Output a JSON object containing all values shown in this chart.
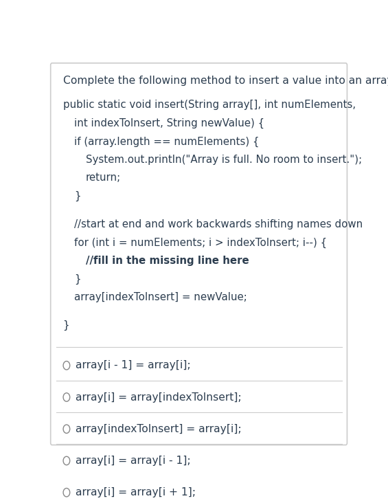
{
  "bg_color": "#ffffff",
  "border_color": "#cccccc",
  "text_color": "#2d3e50",
  "question_text": "Complete the following method to insert a value into an array:",
  "code_lines": [
    {
      "text": "public static void insert(String array[], int numElements,",
      "indent": 0,
      "bold": false
    },
    {
      "text": "int indexToInsert, String newValue) {",
      "indent": 1,
      "bold": false
    },
    {
      "text": "if (array.length == numElements) {",
      "indent": 1,
      "bold": false
    },
    {
      "text": "System.out.println(\"Array is full. No room to insert.\");",
      "indent": 2,
      "bold": false
    },
    {
      "text": "return;",
      "indent": 2,
      "bold": false
    },
    {
      "text": "}",
      "indent": 1,
      "bold": false
    },
    {
      "text": "",
      "indent": 0,
      "bold": false
    },
    {
      "text": "//start at end and work backwards shifting names down",
      "indent": 1,
      "bold": false
    },
    {
      "text": "for (int i = numElements; i > indexToInsert; i--) {",
      "indent": 1,
      "bold": false
    },
    {
      "text": "//fill in the missing line here",
      "indent": 2,
      "bold": true
    },
    {
      "text": "}",
      "indent": 1,
      "bold": false
    },
    {
      "text": "array[indexToInsert] = newValue;",
      "indent": 1,
      "bold": false
    },
    {
      "text": "",
      "indent": 0,
      "bold": false
    },
    {
      "text": "}",
      "indent": 0,
      "bold": false
    }
  ],
  "options": [
    "array[i - 1] = array[i];",
    "array[i] = array[indexToInsert];",
    "array[indexToInsert] = array[i];",
    "array[i] = array[i - 1];",
    "array[i] = array[i + 1];"
  ],
  "font_size_question": 11.2,
  "font_size_code": 10.8,
  "font_size_options": 11.2,
  "circle_color": "#888888",
  "divider_color": "#cccccc"
}
